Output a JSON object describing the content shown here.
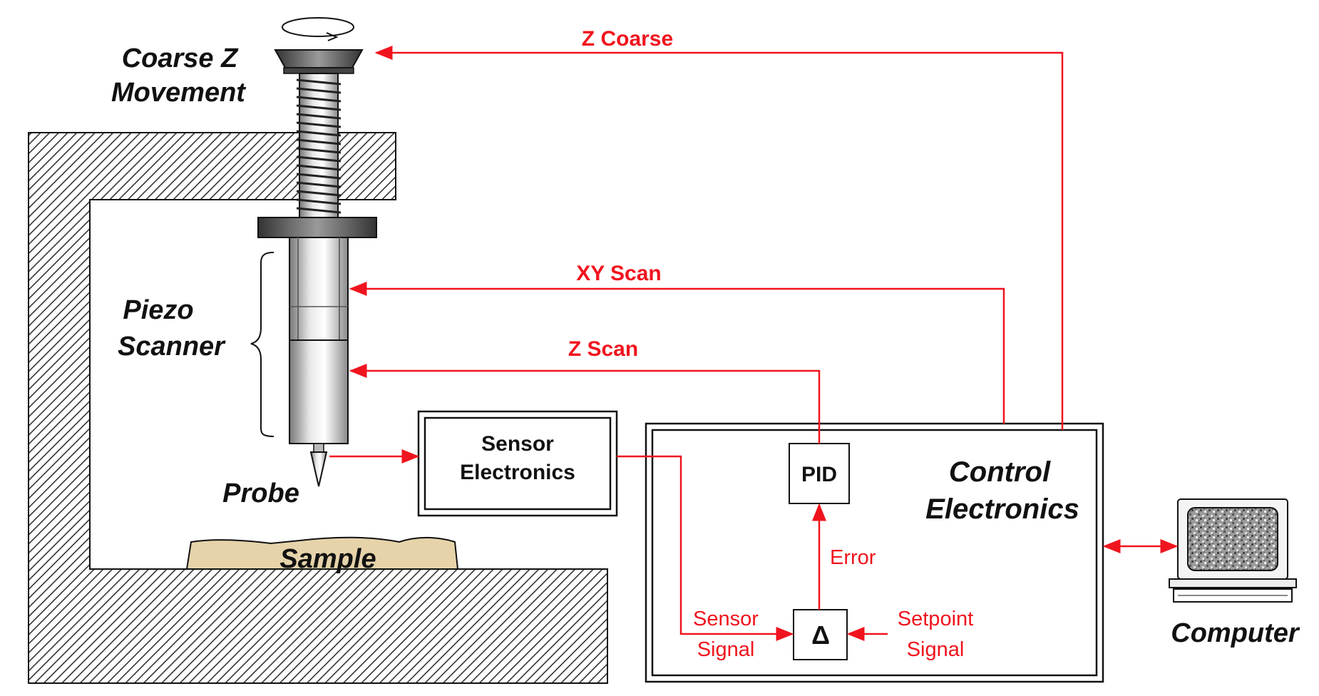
{
  "labels": {
    "coarse_z_line1": "Coarse Z",
    "coarse_z_line2": "Movement",
    "piezo_line1": "Piezo",
    "piezo_line2": "Scanner",
    "probe": "Probe",
    "sample": "Sample",
    "computer": "Computer",
    "sensor_electronics_line1": "Sensor",
    "sensor_electronics_line2": "Electronics",
    "control_electronics_line1": "Control",
    "control_electronics_line2": "Electronics",
    "pid": "PID",
    "delta": "Δ",
    "z_coarse": "Z Coarse",
    "xy_scan": "XY Scan",
    "z_scan": "Z Scan",
    "error": "Error",
    "sensor_signal_line1": "Sensor",
    "sensor_signal_line2": "Signal",
    "setpoint_signal_line1": "Setpoint",
    "setpoint_signal_line2": "Signal"
  },
  "colors": {
    "signal_red": "#f0141e",
    "sample_tan": "#e6d3aa",
    "outline_black": "#111111"
  }
}
